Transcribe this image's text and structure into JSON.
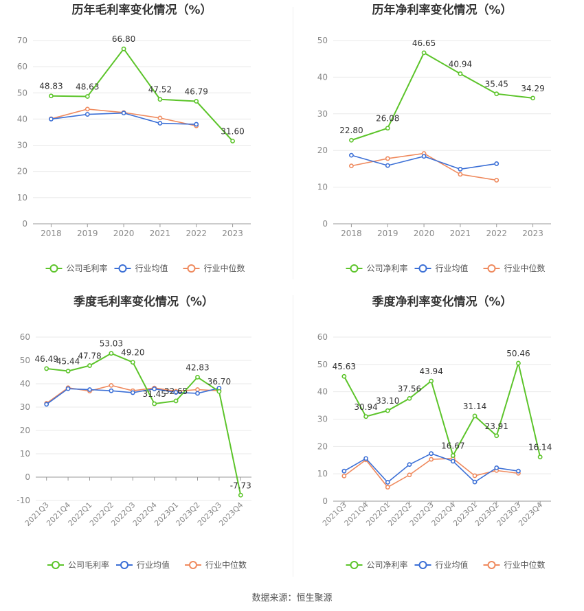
{
  "colors": {
    "company": "#5cc42a",
    "industry_avg": "#3b6fd6",
    "industry_median": "#ef8a5e",
    "grid": "#e8e8e8",
    "axis_text": "#888888",
    "title": "#333333"
  },
  "source_text": "数据来源：恒生聚源",
  "chart_data": [
    {
      "id": "annual-gross",
      "type": "line",
      "title": "历年毛利率变化情况（%）",
      "categories": [
        "2018",
        "2019",
        "2020",
        "2021",
        "2022",
        "2023"
      ],
      "ylim": [
        0,
        70
      ],
      "yticks": [
        0,
        10,
        20,
        30,
        40,
        50,
        60,
        70
      ],
      "rotate_x": false,
      "series": [
        {
          "name": "公司毛利率",
          "key": "company",
          "values": [
            48.83,
            48.63,
            66.8,
            47.52,
            46.79,
            31.6
          ],
          "labels": [
            "48.83",
            "48.63",
            "66.80",
            "47.52",
            "46.79",
            "31.60"
          ]
        },
        {
          "name": "行业均值",
          "key": "industry_avg",
          "values": [
            40.0,
            41.8,
            42.3,
            38.4,
            38.0,
            null
          ]
        },
        {
          "name": "行业中位数",
          "key": "industry_median",
          "values": [
            40.1,
            43.8,
            42.5,
            40.4,
            37.4,
            null
          ]
        }
      ]
    },
    {
      "id": "annual-net",
      "type": "line",
      "title": "历年净利率变化情况（%）",
      "categories": [
        "2018",
        "2019",
        "2020",
        "2021",
        "2022",
        "2023"
      ],
      "ylim": [
        0,
        50
      ],
      "yticks": [
        0,
        10,
        20,
        30,
        40,
        50
      ],
      "rotate_x": false,
      "series": [
        {
          "name": "公司净利率",
          "key": "company",
          "values": [
            22.8,
            26.08,
            46.65,
            40.94,
            35.45,
            34.29
          ],
          "labels": [
            "22.80",
            "26.08",
            "46.65",
            "40.94",
            "35.45",
            "34.29"
          ]
        },
        {
          "name": "行业均值",
          "key": "industry_avg",
          "values": [
            18.7,
            15.9,
            18.4,
            14.9,
            16.4,
            null
          ]
        },
        {
          "name": "行业中位数",
          "key": "industry_median",
          "values": [
            15.8,
            17.8,
            19.2,
            13.5,
            11.9,
            null
          ]
        }
      ]
    },
    {
      "id": "quarterly-gross",
      "type": "line",
      "title": "季度毛利率变化情况（%）",
      "categories": [
        "2021Q3",
        "2021Q4",
        "2022Q1",
        "2022Q2",
        "2022Q3",
        "2022Q4",
        "2023Q1",
        "2023Q2",
        "2023Q3",
        "2023Q4"
      ],
      "ylim": [
        -10,
        60
      ],
      "yticks": [
        -10,
        0,
        10,
        20,
        30,
        40,
        50,
        60
      ],
      "rotate_x": true,
      "series": [
        {
          "name": "公司毛利率",
          "key": "company",
          "values": [
            46.49,
            45.44,
            47.78,
            53.03,
            49.2,
            31.45,
            32.65,
            42.83,
            36.7,
            -7.73
          ],
          "labels": [
            "46.49",
            "45.44",
            "47.78",
            "53.03",
            "49.20",
            "31.45",
            "32.65",
            "42.83",
            "36.70",
            "-7.73"
          ]
        },
        {
          "name": "行业均值",
          "key": "industry_avg",
          "values": [
            31.2,
            37.9,
            37.5,
            37.0,
            36.2,
            37.8,
            36.3,
            35.9,
            38.1,
            null
          ]
        },
        {
          "name": "行业中位数",
          "key": "industry_median",
          "values": [
            31.6,
            38.3,
            36.9,
            39.3,
            37.0,
            38.2,
            36.8,
            37.5,
            37.0,
            null
          ]
        }
      ]
    },
    {
      "id": "quarterly-net",
      "type": "line",
      "title": "季度净利率变化情况（%）",
      "categories": [
        "2021Q3",
        "2021Q4",
        "2022Q1",
        "2022Q2",
        "2022Q3",
        "2022Q4",
        "2023Q1",
        "2023Q2",
        "2023Q3",
        "2023Q4"
      ],
      "ylim": [
        0,
        60
      ],
      "yticks": [
        0,
        10,
        20,
        30,
        40,
        50,
        60
      ],
      "rotate_x": true,
      "series": [
        {
          "name": "公司净利率",
          "key": "company",
          "values": [
            45.63,
            30.94,
            33.1,
            37.56,
            43.94,
            16.67,
            31.14,
            23.91,
            50.46,
            16.14
          ],
          "labels": [
            "45.63",
            "30.94",
            "33.10",
            "37.56",
            "43.94",
            "16.67",
            "31.14",
            "23.91",
            "50.46",
            "16.14"
          ]
        },
        {
          "name": "行业均值",
          "key": "industry_avg",
          "values": [
            11.0,
            15.6,
            6.9,
            13.4,
            17.4,
            14.6,
            7.0,
            12.2,
            11.0,
            null
          ]
        },
        {
          "name": "行业中位数",
          "key": "industry_median",
          "values": [
            9.2,
            15.1,
            5.1,
            9.6,
            15.3,
            15.6,
            9.3,
            11.2,
            10.2,
            null
          ]
        }
      ]
    }
  ]
}
